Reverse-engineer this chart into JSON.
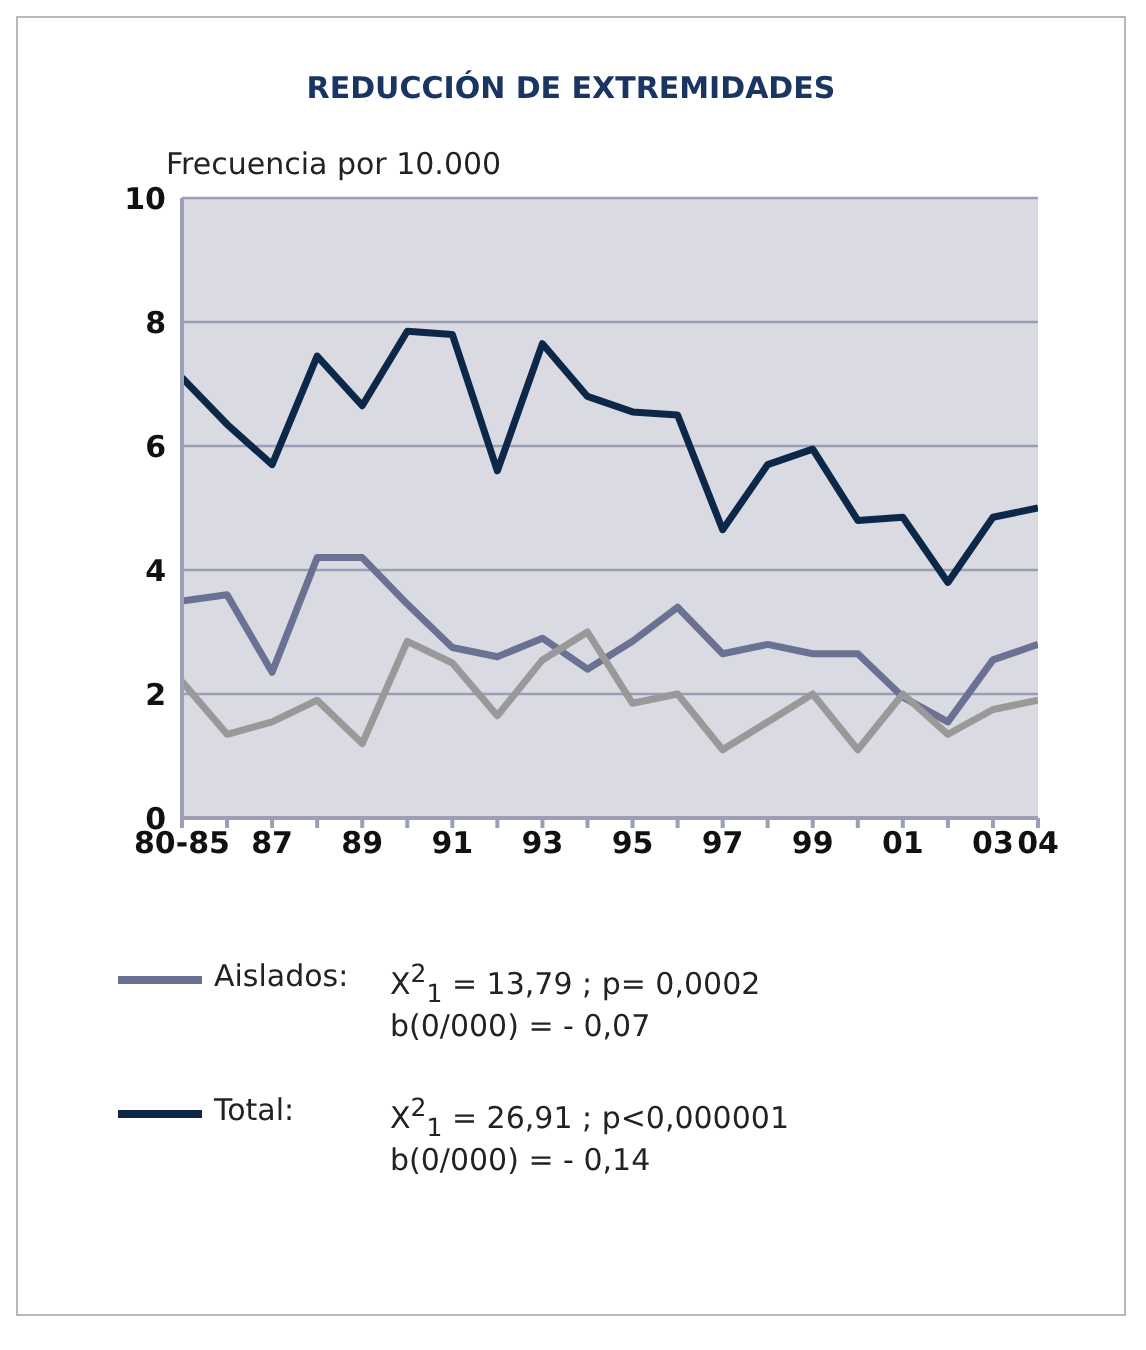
{
  "chart_data": {
    "type": "line",
    "title": "REDUCCIÓN DE EXTREMIDADES",
    "ylabel": "Frecuencia por 10.000",
    "categories": [
      "80-85",
      null,
      "87",
      null,
      "89",
      null,
      "91",
      null,
      "93",
      null,
      "95",
      null,
      "97",
      null,
      "99",
      null,
      "01",
      null,
      "03",
      "04"
    ],
    "series": [
      {
        "name": "Aislados:",
        "color": "#6b7192",
        "values": [
          3.5,
          3.6,
          2.35,
          4.2,
          4.2,
          3.45,
          2.75,
          2.6,
          2.9,
          2.4,
          2.85,
          3.4,
          2.65,
          2.8,
          2.65,
          2.65,
          1.95,
          1.55,
          2.55,
          2.8
        ]
      },
      {
        "name": "Total:",
        "color": "#0d2748",
        "values": [
          7.1,
          6.35,
          5.7,
          7.45,
          6.65,
          7.85,
          7.8,
          5.6,
          7.65,
          6.8,
          6.55,
          6.5,
          4.65,
          5.7,
          5.95,
          4.8,
          4.85,
          3.8,
          4.85,
          5.0
        ]
      },
      {
        "color": "#999999",
        "values": [
          2.2,
          1.35,
          1.55,
          1.9,
          1.2,
          2.85,
          2.5,
          1.65,
          2.55,
          3.0,
          1.85,
          2.0,
          1.1,
          1.55,
          2.0,
          1.1,
          2.0,
          1.35,
          1.75,
          1.9
        ]
      }
    ],
    "annotations": [
      "X$^{2}$$_{1}$ = 13,79 ;  p= 0,0002",
      "b(0/000) = - 0,07",
      "X$^{2}$$_{1}$ = 26,91 ;  p<0,000001",
      "b(0/000) = - 0,14"
    ],
    "ylim": [
      0,
      10
    ],
    "yticks": [
      0,
      2,
      4,
      6,
      8,
      10
    ],
    "grid": "y",
    "legend": "bottom",
    "marker": "none",
    "line_style": "solid"
  }
}
